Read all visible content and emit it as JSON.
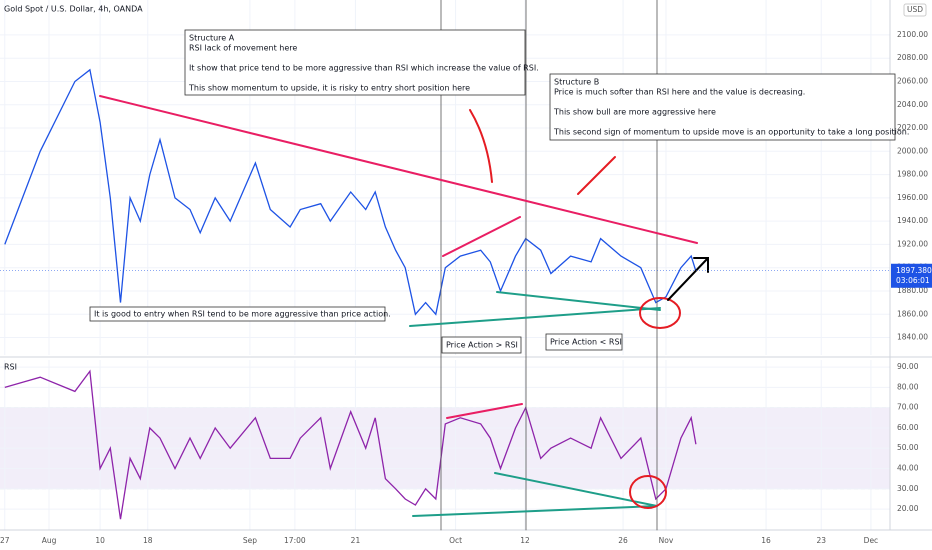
{
  "header": {
    "title": "Gold Spot / U.S. Dollar, 4h, OANDA",
    "currency": "USD",
    "last_price": {
      "value": 1897.38,
      "label": "1897.380"
    },
    "countdown": "03:06:01"
  },
  "chart_data": [
    {
      "type": "line",
      "x": [
        0,
        5.2,
        10.3,
        12.5,
        14,
        15.5,
        17,
        18.4,
        19.9,
        21.3,
        22.8,
        25,
        27.2,
        28.7,
        30.9,
        33.1,
        36.8,
        39,
        41.9,
        43.4,
        46.4,
        47.8,
        50.8,
        53,
        54.4,
        55.9,
        57.4,
        58.8,
        60.3,
        61.8,
        63.3,
        64.7,
        66.9,
        69.9,
        71.3,
        72.8,
        75,
        76.5,
        78.7,
        80.2,
        83.1,
        86.1,
        87.5,
        90.5,
        93.4,
        95.6,
        97.1,
        99.3,
        100.8,
        101.5
      ],
      "series": [
        {
          "color": "#1e53e5",
          "values": [
            1920,
            2000,
            2060,
            2070,
            2025,
            1960,
            1870,
            1960,
            1940,
            1980,
            2010,
            1960,
            1950,
            1930,
            1960,
            1940,
            1990,
            1950,
            1935,
            1950,
            1955,
            1940,
            1965,
            1950,
            1965,
            1935,
            1915,
            1900,
            1860,
            1870,
            1860,
            1900,
            1910,
            1915,
            1905,
            1880,
            1910,
            1925,
            1915,
            1895,
            1910,
            1905,
            1925,
            1910,
            1900,
            1870,
            1875,
            1900,
            1910,
            1897
          ]
        }
      ],
      "xlim": [
        -0.7,
        130
      ],
      "ylim": [
        1825,
        2130
      ],
      "grid": true,
      "yticks": [
        {
          "value": 1840,
          "label": "1840.00"
        },
        {
          "value": 1860,
          "label": "1860.00"
        },
        {
          "value": 1880,
          "label": "1880.00"
        },
        {
          "value": 1900,
          "label": "1900.00"
        },
        {
          "value": 1920,
          "label": "1920.00"
        },
        {
          "value": 1940,
          "label": "1940.00"
        },
        {
          "value": 1960,
          "label": "1960.00"
        },
        {
          "value": 1980,
          "label": "1980.00"
        },
        {
          "value": 2000,
          "label": "2000.00"
        },
        {
          "value": 2020,
          "label": "2020.00"
        },
        {
          "value": 2040,
          "label": "2040.00"
        },
        {
          "value": 2060,
          "label": "2060.00"
        },
        {
          "value": 2080,
          "label": "2080.00"
        },
        {
          "value": 2100,
          "label": "2100.00"
        }
      ]
    },
    {
      "type": "line",
      "title": "RSI",
      "x": [
        0,
        5.2,
        10.3,
        12.5,
        14,
        15.5,
        17,
        18.4,
        19.9,
        21.3,
        22.8,
        25,
        27.2,
        28.7,
        30.9,
        33.1,
        36.8,
        39,
        41.9,
        43.4,
        46.4,
        47.8,
        50.8,
        53,
        54.4,
        55.9,
        57.4,
        58.8,
        60.3,
        61.8,
        63.3,
        64.7,
        66.9,
        69.9,
        71.3,
        72.8,
        75,
        76.5,
        78.7,
        80.2,
        83.1,
        86.1,
        87.5,
        90.5,
        93.4,
        95.6,
        97.1,
        99.3,
        100.8,
        101.5
      ],
      "series": [
        {
          "color": "#8e24aa",
          "values": [
            80,
            85,
            78,
            88,
            40,
            50,
            15,
            45,
            35,
            60,
            55,
            40,
            55,
            45,
            60,
            50,
            65,
            45,
            45,
            55,
            65,
            40,
            68,
            50,
            65,
            35,
            30,
            25,
            22,
            30,
            25,
            62,
            65,
            62,
            55,
            40,
            60,
            70,
            45,
            50,
            55,
            50,
            65,
            45,
            55,
            25,
            30,
            55,
            65,
            52
          ]
        }
      ],
      "xlim": [
        -0.7,
        130
      ],
      "ylim": [
        9.7,
        93.5
      ],
      "grid": true,
      "band": [
        30,
        70
      ],
      "yticks": [
        {
          "value": 20,
          "label": "20.00"
        },
        {
          "value": 30,
          "label": "30.00"
        },
        {
          "value": 40,
          "label": "40.00"
        },
        {
          "value": 50,
          "label": "50.00"
        },
        {
          "value": 60,
          "label": "60.00"
        },
        {
          "value": 70,
          "label": "70.00"
        },
        {
          "value": 80,
          "label": "80.00"
        },
        {
          "value": 90,
          "label": "90.00"
        }
      ],
      "xticks": [
        {
          "value": 0,
          "label": "27"
        },
        {
          "value": 6.5,
          "label": "Aug"
        },
        {
          "value": 14,
          "label": "10"
        },
        {
          "value": 21,
          "label": "18"
        },
        {
          "value": 36,
          "label": "Sep"
        },
        {
          "value": 42.6,
          "label": "17:00"
        },
        {
          "value": 51.5,
          "label": "21"
        },
        {
          "value": 66.2,
          "label": "Oct"
        },
        {
          "value": 76.4,
          "label": "12"
        },
        {
          "value": 90.8,
          "label": "26"
        },
        {
          "value": 97.1,
          "label": "Nov"
        },
        {
          "value": 111.8,
          "label": "16"
        },
        {
          "value": 119.9,
          "label": "23"
        },
        {
          "value": 127.2,
          "label": "Dec"
        }
      ]
    }
  ],
  "annotations": {
    "structure_a": [
      "Structure A",
      "RSI lack of movement here",
      "It show that price tend to be more aggressive than RSI which increase the value of RSI.",
      "This show momentum to upside, it is risky to entry short position here"
    ],
    "structure_b": [
      "Structure B",
      "Price is much softer than RSI here and the value is decreasing.",
      "This show bull are more aggressive here",
      "This second sign of momentum to upside move is an opportunity to take a long position."
    ],
    "entry_note": "It is good to entry when RSI tend to be more aggressive than price action.",
    "label_left": "Price Action > RSI",
    "label_right": "Price Action < RSI"
  }
}
